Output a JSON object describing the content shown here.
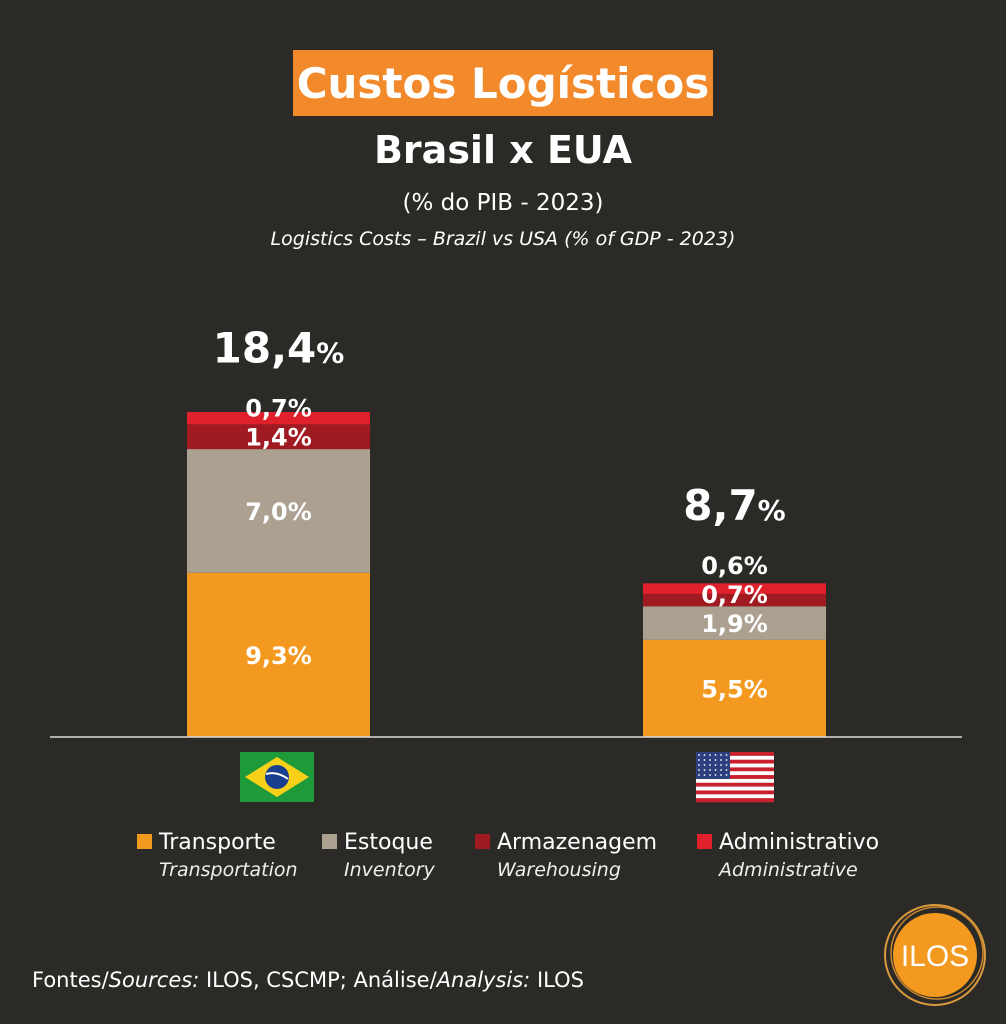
{
  "chart_data": {
    "type": "bar",
    "stacked": true,
    "title": "Custos Logísticos",
    "subtitle": "Brasil x EUA",
    "unit_label": "(% do PIB - 2023)",
    "title_en": "Logistics Costs – Brazil vs USA (% of GDP - 2023)",
    "categories": [
      "Brasil",
      "EUA"
    ],
    "totals": [
      "18,4",
      "8,7"
    ],
    "total_values": [
      18.4,
      8.7
    ],
    "series": [
      {
        "name": "Transporte",
        "name_en": "Transportation",
        "color": "#f4991f",
        "values": [
          9.3,
          5.5
        ],
        "labels": [
          "9,3%",
          "5,5%"
        ]
      },
      {
        "name": "Estoque",
        "name_en": "Inventory",
        "color": "#aca191",
        "values": [
          7.0,
          1.9
        ],
        "labels": [
          "7,0%",
          "1,9%"
        ]
      },
      {
        "name": "Armazenagem",
        "name_en": "Warehousing",
        "color": "#a01a22",
        "values": [
          1.4,
          0.7
        ],
        "labels": [
          "1,4%",
          "0,7%"
        ]
      },
      {
        "name": "Administrativo",
        "name_en": "Administrative",
        "color": "#e0202a",
        "values": [
          0.7,
          0.6
        ],
        "labels": [
          "0,7%",
          "0,6%"
        ]
      }
    ],
    "ylim": [
      0,
      18.4
    ],
    "grid": false,
    "legend_position": "bottom"
  },
  "source": {
    "p1": "Fontes/",
    "p2": "Sources:",
    "p3": " ILOS, CSCMP; Análise/",
    "p4": "Analysis:",
    "p5": " ILOS"
  },
  "logo": "ILOS",
  "colors": {
    "background": "#2b2a27",
    "title_bg": "#f28a2c"
  }
}
